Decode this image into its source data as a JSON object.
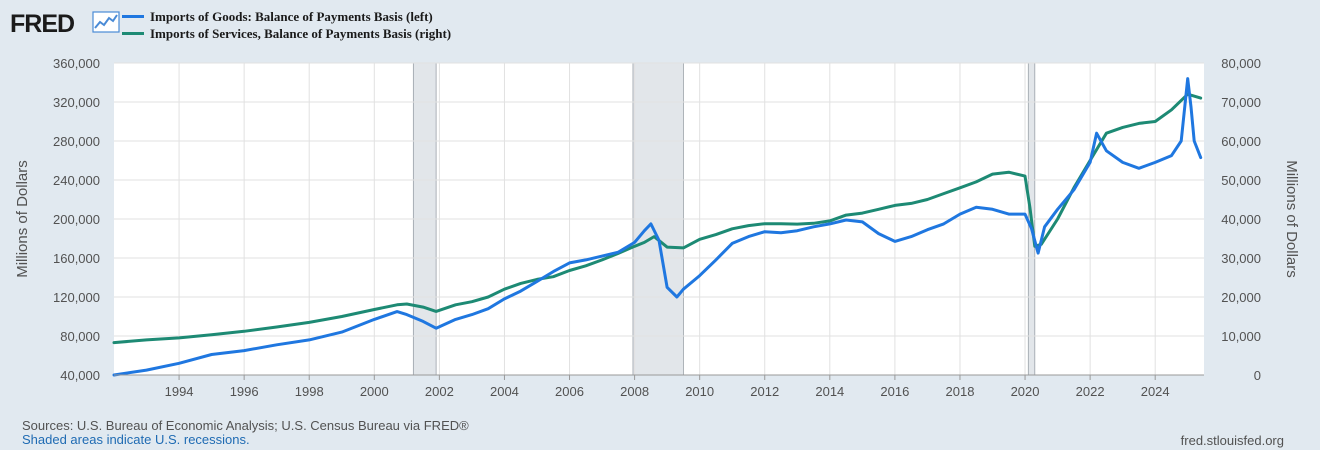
{
  "header": {
    "logo_text": "FRED",
    "logo_icon": "trend-line-icon"
  },
  "legend": [
    {
      "label": "Imports of Goods: Balance of Payments Basis (left)",
      "color": "#1f77e0"
    },
    {
      "label": "Imports of Services, Balance of Payments Basis (right)",
      "color": "#1d8a74"
    }
  ],
  "chart_data": {
    "type": "line",
    "ylabel_left": "Millions of Dollars",
    "ylabel_right": "Millions of Dollars",
    "ylim_left": [
      40000,
      360000
    ],
    "ylim_right": [
      0,
      80000
    ],
    "xlim": [
      1992.0,
      2025.5
    ],
    "yticks_left": [
      "40,000",
      "80,000",
      "120,000",
      "160,000",
      "200,000",
      "240,000",
      "280,000",
      "320,000",
      "360,000"
    ],
    "yticks_right": [
      "0",
      "10,000",
      "20,000",
      "30,000",
      "40,000",
      "50,000",
      "60,000",
      "70,000",
      "80,000"
    ],
    "xticks": [
      "1994",
      "1996",
      "1998",
      "2000",
      "2002",
      "2004",
      "2006",
      "2008",
      "2010",
      "2012",
      "2014",
      "2016",
      "2018",
      "2020",
      "2022",
      "2024"
    ],
    "grid": true,
    "legend_position": "top-left",
    "recessions": [
      [
        2001.2,
        2001.9
      ],
      [
        2007.95,
        2009.5
      ],
      [
        2020.1,
        2020.3
      ]
    ],
    "series": [
      {
        "name": "Imports of Goods: Balance of Payments Basis (left)",
        "axis": "left",
        "color": "#1f77e0",
        "x": [
          1992.0,
          1993.0,
          1994.0,
          1995.0,
          1996.0,
          1997.0,
          1998.0,
          1999.0,
          2000.0,
          2000.7,
          2001.0,
          2001.5,
          2001.9,
          2002.5,
          2003.0,
          2003.5,
          2004.0,
          2004.5,
          2005.0,
          2005.5,
          2006.0,
          2006.5,
          2007.0,
          2007.5,
          2008.0,
          2008.3,
          2008.5,
          2008.75,
          2009.0,
          2009.3,
          2009.5,
          2010.0,
          2010.5,
          2011.0,
          2011.5,
          2012.0,
          2012.5,
          2013.0,
          2013.5,
          2014.0,
          2014.5,
          2015.0,
          2015.5,
          2016.0,
          2016.5,
          2017.0,
          2017.5,
          2018.0,
          2018.5,
          2019.0,
          2019.5,
          2020.0,
          2020.2,
          2020.4,
          2020.6,
          2021.0,
          2021.5,
          2022.0,
          2022.2,
          2022.5,
          2023.0,
          2023.5,
          2024.0,
          2024.5,
          2024.8,
          2025.0,
          2025.1,
          2025.2,
          2025.4
        ],
        "values": [
          40000,
          45000,
          52000,
          61000,
          65000,
          71000,
          76000,
          84000,
          97000,
          105000,
          102000,
          95000,
          88000,
          97000,
          102000,
          108000,
          118000,
          126000,
          136000,
          146000,
          155000,
          158000,
          162000,
          166000,
          176000,
          188000,
          195000,
          178000,
          130000,
          120000,
          128000,
          142000,
          158000,
          175000,
          182000,
          187000,
          186000,
          188000,
          192000,
          195000,
          199000,
          197000,
          185000,
          177000,
          182000,
          189000,
          195000,
          205000,
          212000,
          210000,
          205000,
          205000,
          190000,
          165000,
          192000,
          210000,
          230000,
          258000,
          288000,
          270000,
          258000,
          252000,
          258000,
          265000,
          280000,
          344000,
          315000,
          280000,
          263000
        ]
      },
      {
        "name": "Imports of Services, Balance of Payments Basis (right)",
        "axis": "right",
        "color": "#1d8a74",
        "x": [
          1992.0,
          1993.0,
          1994.0,
          1995.0,
          1996.0,
          1997.0,
          1998.0,
          1999.0,
          2000.0,
          2000.7,
          2001.0,
          2001.5,
          2001.9,
          2002.5,
          2003.0,
          2003.5,
          2004.0,
          2004.5,
          2005.0,
          2005.5,
          2006.0,
          2006.5,
          2007.0,
          2007.5,
          2008.0,
          2008.3,
          2008.6,
          2009.0,
          2009.5,
          2010.0,
          2010.5,
          2011.0,
          2011.5,
          2012.0,
          2012.5,
          2013.0,
          2013.5,
          2014.0,
          2014.5,
          2015.0,
          2015.5,
          2016.0,
          2016.5,
          2017.0,
          2017.5,
          2018.0,
          2018.5,
          2019.0,
          2019.5,
          2020.0,
          2020.15,
          2020.3,
          2020.5,
          2021.0,
          2021.5,
          2022.0,
          2022.5,
          2023.0,
          2023.5,
          2024.0,
          2024.5,
          2025.0,
          2025.4
        ],
        "values": [
          8300,
          9000,
          9500,
          10300,
          11200,
          12300,
          13500,
          15000,
          16800,
          18000,
          18200,
          17400,
          16300,
          18000,
          18800,
          20000,
          22000,
          23500,
          24500,
          25200,
          26800,
          28000,
          29500,
          31200,
          33000,
          34000,
          35500,
          32800,
          32600,
          34800,
          36000,
          37500,
          38300,
          38800,
          38800,
          38700,
          38900,
          39500,
          41000,
          41500,
          42500,
          43500,
          44000,
          45000,
          46500,
          48000,
          49500,
          51500,
          52000,
          51000,
          43000,
          33000,
          33500,
          40000,
          48000,
          55000,
          62000,
          63500,
          64500,
          65000,
          68000,
          72000,
          71000
        ]
      }
    ]
  },
  "footer": {
    "source": "Sources: U.S. Bureau of Economic Analysis; U.S. Census Bureau via FRED®",
    "note": "Shaded areas indicate U.S. recessions.",
    "site": "fred.stlouisfed.org"
  }
}
